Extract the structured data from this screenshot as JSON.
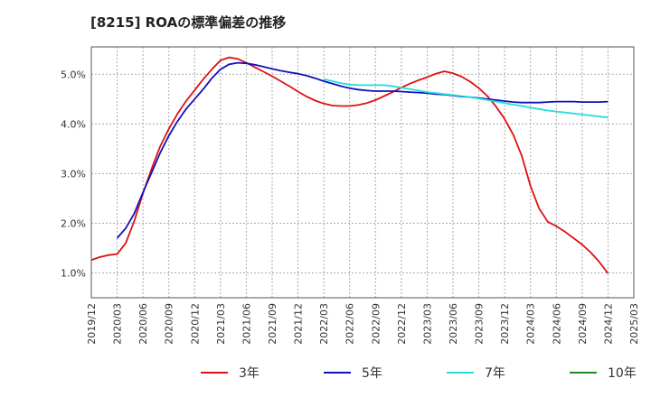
{
  "chart_data": {
    "type": "line",
    "title": "[8215]  ROAの標準偏差の推移",
    "x_ticks": [
      "2019/12",
      "2020/03",
      "2020/06",
      "2020/09",
      "2020/12",
      "2021/03",
      "2021/06",
      "2021/09",
      "2021/12",
      "2022/03",
      "2022/06",
      "2022/09",
      "2022/12",
      "2023/03",
      "2023/06",
      "2023/09",
      "2023/12",
      "2024/03",
      "2024/06",
      "2024/09",
      "2024/12",
      "2025/03"
    ],
    "y_ticks": [
      "1.0%",
      "2.0%",
      "3.0%",
      "4.0%",
      "5.0%"
    ],
    "ylim": [
      0.5,
      5.55
    ],
    "grid": true,
    "legend_position": "bottom",
    "series": [
      {
        "name": "3年",
        "color": "#dd1111",
        "points": [
          [
            "2019/12",
            1.26
          ],
          [
            "2020/01",
            1.32
          ],
          [
            "2020/02",
            1.36
          ],
          [
            "2020/03",
            1.38
          ],
          [
            "2020/04",
            1.6
          ],
          [
            "2020/05",
            2.05
          ],
          [
            "2020/06",
            2.6
          ],
          [
            "2020/07",
            3.1
          ],
          [
            "2020/08",
            3.55
          ],
          [
            "2020/09",
            3.9
          ],
          [
            "2020/10",
            4.2
          ],
          [
            "2020/11",
            4.46
          ],
          [
            "2020/12",
            4.68
          ],
          [
            "2021/01",
            4.9
          ],
          [
            "2021/02",
            5.1
          ],
          [
            "2021/03",
            5.28
          ],
          [
            "2021/04",
            5.34
          ],
          [
            "2021/05",
            5.31
          ],
          [
            "2021/06",
            5.23
          ],
          [
            "2021/07",
            5.14
          ],
          [
            "2021/08",
            5.05
          ],
          [
            "2021/09",
            4.96
          ],
          [
            "2021/10",
            4.86
          ],
          [
            "2021/11",
            4.76
          ],
          [
            "2021/12",
            4.65
          ],
          [
            "2022/01",
            4.55
          ],
          [
            "2022/02",
            4.47
          ],
          [
            "2022/03",
            4.41
          ],
          [
            "2022/04",
            4.37
          ],
          [
            "2022/05",
            4.36
          ],
          [
            "2022/06",
            4.36
          ],
          [
            "2022/07",
            4.38
          ],
          [
            "2022/08",
            4.42
          ],
          [
            "2022/09",
            4.48
          ],
          [
            "2022/10",
            4.56
          ],
          [
            "2022/11",
            4.64
          ],
          [
            "2022/12",
            4.73
          ],
          [
            "2023/01",
            4.81
          ],
          [
            "2023/02",
            4.88
          ],
          [
            "2023/03",
            4.94
          ],
          [
            "2023/04",
            5.01
          ],
          [
            "2023/05",
            5.06
          ],
          [
            "2023/06",
            5.02
          ],
          [
            "2023/07",
            4.95
          ],
          [
            "2023/08",
            4.85
          ],
          [
            "2023/09",
            4.72
          ],
          [
            "2023/10",
            4.56
          ],
          [
            "2023/11",
            4.35
          ],
          [
            "2023/12",
            4.1
          ],
          [
            "2024/01",
            3.78
          ],
          [
            "2024/02",
            3.35
          ],
          [
            "2024/03",
            2.75
          ],
          [
            "2024/04",
            2.3
          ],
          [
            "2024/05",
            2.03
          ],
          [
            "2024/06",
            1.94
          ],
          [
            "2024/07",
            1.83
          ],
          [
            "2024/08",
            1.7
          ],
          [
            "2024/09",
            1.57
          ],
          [
            "2024/10",
            1.41
          ],
          [
            "2024/11",
            1.22
          ],
          [
            "2024/12",
            0.99
          ]
        ]
      },
      {
        "name": "5年",
        "color": "#1111bb",
        "points": [
          [
            "2020/03",
            1.7
          ],
          [
            "2020/04",
            1.9
          ],
          [
            "2020/05",
            2.2
          ],
          [
            "2020/06",
            2.62
          ],
          [
            "2020/07",
            3.02
          ],
          [
            "2020/08",
            3.42
          ],
          [
            "2020/09",
            3.76
          ],
          [
            "2020/10",
            4.05
          ],
          [
            "2020/11",
            4.3
          ],
          [
            "2020/12",
            4.5
          ],
          [
            "2021/01",
            4.7
          ],
          [
            "2021/02",
            4.92
          ],
          [
            "2021/03",
            5.1
          ],
          [
            "2021/04",
            5.2
          ],
          [
            "2021/05",
            5.23
          ],
          [
            "2021/06",
            5.22
          ],
          [
            "2021/07",
            5.19
          ],
          [
            "2021/08",
            5.15
          ],
          [
            "2021/09",
            5.11
          ],
          [
            "2021/10",
            5.07
          ],
          [
            "2021/11",
            5.04
          ],
          [
            "2021/12",
            5.01
          ],
          [
            "2022/01",
            4.97
          ],
          [
            "2022/02",
            4.92
          ],
          [
            "2022/03",
            4.86
          ],
          [
            "2022/04",
            4.81
          ],
          [
            "2022/05",
            4.76
          ],
          [
            "2022/06",
            4.72
          ],
          [
            "2022/07",
            4.69
          ],
          [
            "2022/08",
            4.67
          ],
          [
            "2022/09",
            4.66
          ],
          [
            "2022/10",
            4.66
          ],
          [
            "2022/11",
            4.66
          ],
          [
            "2022/12",
            4.65
          ],
          [
            "2023/01",
            4.64
          ],
          [
            "2023/02",
            4.63
          ],
          [
            "2023/03",
            4.62
          ],
          [
            "2023/04",
            4.6
          ],
          [
            "2023/05",
            4.59
          ],
          [
            "2023/06",
            4.57
          ],
          [
            "2023/07",
            4.55
          ],
          [
            "2023/08",
            4.54
          ],
          [
            "2023/09",
            4.52
          ],
          [
            "2023/10",
            4.5
          ],
          [
            "2023/11",
            4.48
          ],
          [
            "2023/12",
            4.46
          ],
          [
            "2024/01",
            4.44
          ],
          [
            "2024/02",
            4.43
          ],
          [
            "2024/03",
            4.43
          ],
          [
            "2024/04",
            4.43
          ],
          [
            "2024/05",
            4.44
          ],
          [
            "2024/06",
            4.45
          ],
          [
            "2024/07",
            4.45
          ],
          [
            "2024/08",
            4.45
          ],
          [
            "2024/09",
            4.44
          ],
          [
            "2024/10",
            4.44
          ],
          [
            "2024/11",
            4.44
          ],
          [
            "2024/12",
            4.45
          ]
        ]
      },
      {
        "name": "7年",
        "color": "#22dddd",
        "points": [
          [
            "2022/03",
            4.9
          ],
          [
            "2022/04",
            4.86
          ],
          [
            "2022/05",
            4.82
          ],
          [
            "2022/06",
            4.79
          ],
          [
            "2022/07",
            4.78
          ],
          [
            "2022/08",
            4.78
          ],
          [
            "2022/09",
            4.78
          ],
          [
            "2022/10",
            4.78
          ],
          [
            "2022/11",
            4.76
          ],
          [
            "2022/12",
            4.73
          ],
          [
            "2023/01",
            4.7
          ],
          [
            "2023/02",
            4.67
          ],
          [
            "2023/03",
            4.64
          ],
          [
            "2023/04",
            4.62
          ],
          [
            "2023/05",
            4.6
          ],
          [
            "2023/06",
            4.58
          ],
          [
            "2023/07",
            4.56
          ],
          [
            "2023/08",
            4.54
          ],
          [
            "2023/09",
            4.51
          ],
          [
            "2023/10",
            4.48
          ],
          [
            "2023/11",
            4.45
          ],
          [
            "2023/12",
            4.42
          ],
          [
            "2024/01",
            4.39
          ],
          [
            "2024/02",
            4.36
          ],
          [
            "2024/03",
            4.33
          ],
          [
            "2024/04",
            4.3
          ],
          [
            "2024/05",
            4.27
          ],
          [
            "2024/06",
            4.25
          ],
          [
            "2024/07",
            4.23
          ],
          [
            "2024/08",
            4.21
          ],
          [
            "2024/09",
            4.19
          ],
          [
            "2024/10",
            4.17
          ],
          [
            "2024/11",
            4.15
          ],
          [
            "2024/12",
            4.13
          ]
        ]
      },
      {
        "name": "10年",
        "color": "#228822",
        "points": []
      }
    ]
  }
}
